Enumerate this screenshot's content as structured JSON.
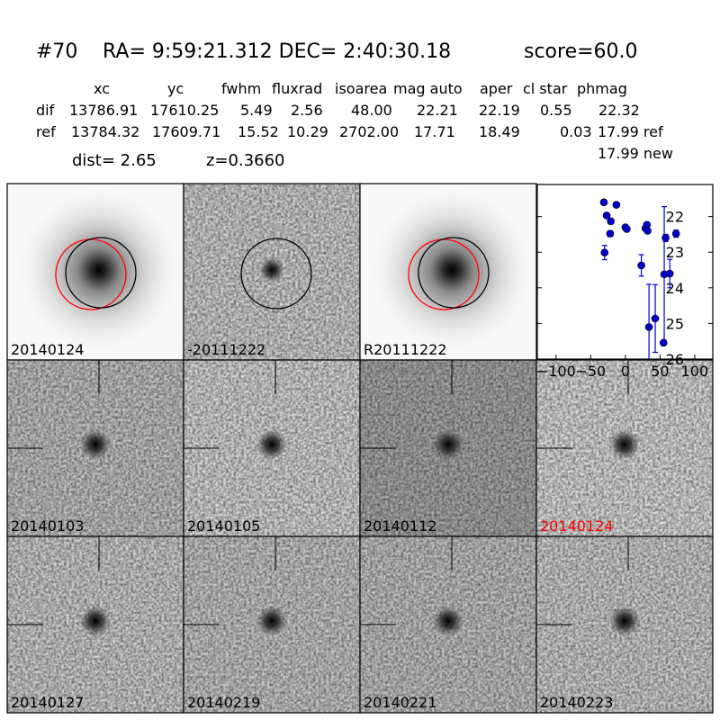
{
  "header": {
    "id": "#70",
    "coords": "RA= 9:59:21.312 DEC= 2:40:30.18",
    "score": "score=60.0"
  },
  "table": {
    "columns": [
      "xc",
      "yc",
      "fwhm",
      "fluxrad",
      "isoarea",
      "mag auto",
      "aper",
      "cl star",
      "phmag"
    ],
    "rows": [
      {
        "label": "dif",
        "values": [
          "13786.91",
          "17610.25",
          "5.49",
          "2.56",
          "48.00",
          "22.21",
          "22.19",
          "0.55",
          "22.32"
        ]
      },
      {
        "label": "ref",
        "values": [
          "13784.32",
          "17609.71",
          "15.52",
          "10.29",
          "2702.00",
          "17.71",
          "18.49",
          "0.03",
          "17.99 ref"
        ]
      }
    ],
    "new_phmag": "17.99 new"
  },
  "dist": "dist=  2.65",
  "z": "z=0.3660",
  "panels": [
    {
      "label": "20140124"
    },
    {
      "label": "-20111222"
    },
    {
      "label": "R20111222"
    },
    {
      "label": "20140103"
    },
    {
      "label": "20140105"
    },
    {
      "label": "20140112"
    },
    {
      "label": "20140124",
      "color": "#ff0000"
    },
    {
      "label": "20140127"
    },
    {
      "label": "20140219"
    },
    {
      "label": "20140221"
    },
    {
      "label": "20140223"
    }
  ],
  "chart_data": {
    "type": "scatter",
    "color": "#0000cc",
    "x": [
      -31,
      -27,
      -21,
      -22,
      -13,
      -30,
      0,
      2,
      29,
      31,
      32,
      23,
      34,
      43,
      58,
      73,
      56,
      64,
      55
    ],
    "values": [
      21.6,
      21.97,
      22.13,
      22.48,
      21.67,
      23.01,
      22.3,
      22.35,
      22.33,
      22.23,
      22.4,
      23.37,
      25.1,
      24.86,
      22.6,
      22.48,
      23.62,
      23.6,
      25.54
    ],
    "errors": [
      0.05,
      0.05,
      0.05,
      0.08,
      0.05,
      0.2,
      0.06,
      0.06,
      0.07,
      0.06,
      0.07,
      0.3,
      1.2,
      0.95,
      0.1,
      0.1,
      1.9,
      0.4,
      0.07
    ],
    "xlim": [
      -127,
      126
    ],
    "ylim": [
      21.1,
      26
    ],
    "y_inverted": true,
    "xticks": [
      {
        "value": -100,
        "label": "−100"
      },
      {
        "value": -50,
        "label": "−50"
      },
      0,
      50,
      100
    ],
    "yticks": [
      22,
      23,
      24,
      25,
      26
    ]
  }
}
